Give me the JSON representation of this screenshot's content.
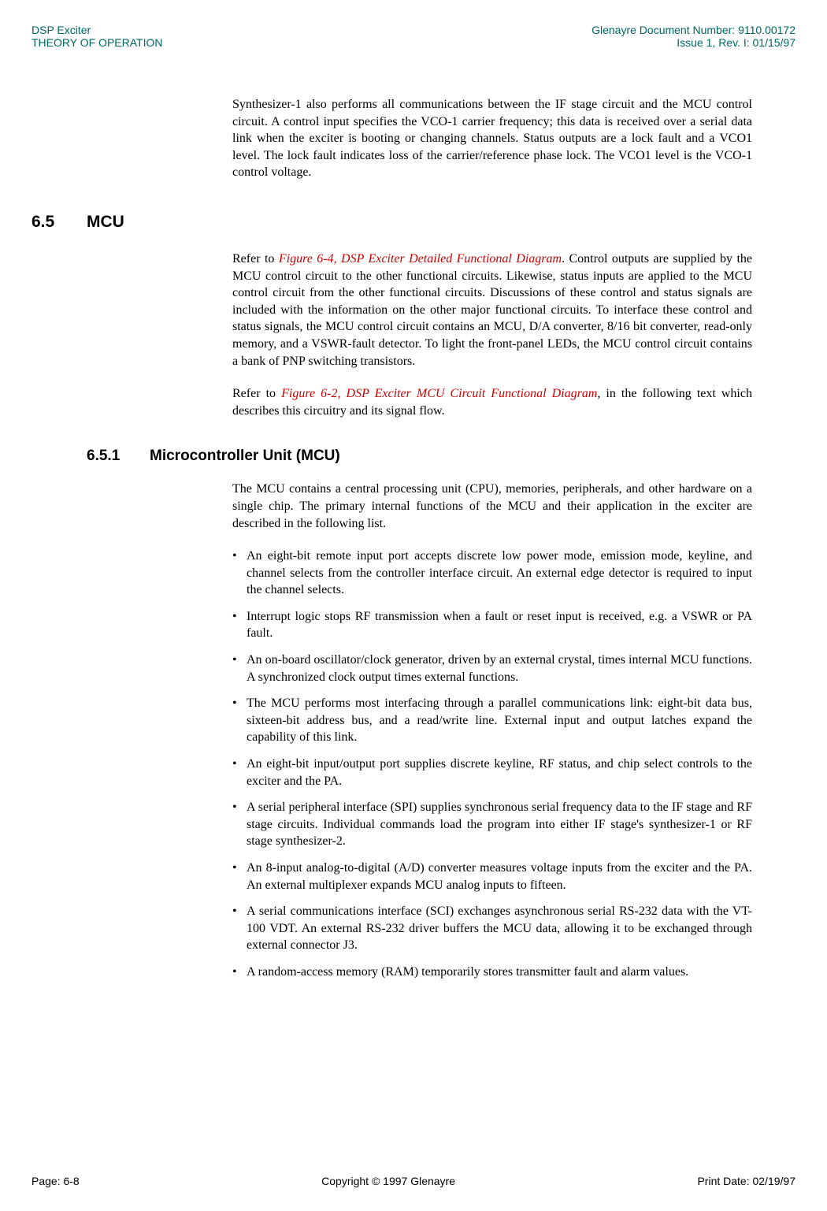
{
  "header": {
    "title_left_1": "DSP Exciter",
    "title_left_2": "THEORY OF OPERATION",
    "title_right_1": "Glenayre Document Number: 9110.00172",
    "title_right_2": "Issue 1, Rev. I: 01/15/97"
  },
  "colors": {
    "header_color": "#006666",
    "figure_ref_color": "#cc0000",
    "text_color": "#000000",
    "background": "#ffffff"
  },
  "para_intro": "Synthesizer-1 also performs all communications between the IF stage circuit and the MCU control circuit. A control input specifies the VCO-1 carrier frequency; this data is received over a serial data link when the exciter is booting or changing channels. Status outputs are a lock fault and a VCO1 level. The lock fault indicates loss of the carrier/reference phase lock. The VCO1 level is the VCO-1 control voltage.",
  "section_6_5": {
    "number": "6.5",
    "title": "MCU",
    "para1_prefix": "Refer to ",
    "para1_ref": "Figure 6-4, DSP Exciter Detailed Functional Diagram",
    "para1_suffix": ". Control outputs are supplied by the MCU control circuit to the other functional circuits. Likewise, status inputs are applied to the MCU control circuit from the other functional circuits. Discussions of these control and status signals are included with the information on the other major functional circuits. To interface these control and status signals, the MCU control circuit contains an MCU, D/A converter, 8/16 bit converter, read-only memory, and a VSWR-fault detector. To light the front-panel LEDs, the MCU control circuit contains a bank of PNP switching transistors.",
    "para2_prefix": "Refer to ",
    "para2_ref": "Figure 6-2, DSP Exciter MCU Circuit Functional Diagram",
    "para2_suffix": ", in the following text which describes this circuitry and its signal flow."
  },
  "section_6_5_1": {
    "number": "6.5.1",
    "title": "Microcontroller Unit (MCU)",
    "intro": "The MCU contains a central processing unit (CPU), memories, peripherals, and other hardware on a single chip. The primary internal functions of the MCU and their application in the exciter are described in the following list.",
    "bullets": [
      "An eight-bit remote input port accepts discrete low power mode, emission mode, keyline, and channel selects from the controller interface circuit. An external edge detector is required to input the channel selects.",
      "Interrupt logic stops RF transmission when a fault or reset input is received, e.g. a VSWR or PA fault.",
      "An on-board oscillator/clock generator, driven by an external crystal, times internal MCU functions. A synchronized clock output times external functions.",
      "The MCU performs most interfacing through a parallel communications link: eight-bit data bus, sixteen-bit address bus, and a read/write line. External input and output latches expand the capability of this link.",
      "An eight-bit input/output port supplies discrete keyline, RF status, and chip select controls to the exciter and the PA.",
      "A serial peripheral interface (SPI) supplies synchronous serial frequency data to the IF stage and RF stage circuits. Individual commands load the program into either IF stage's synthesizer-1 or RF stage synthesizer-2.",
      "An 8-input analog-to-digital (A/D) converter measures voltage inputs from the exciter and the PA. An external multiplexer expands MCU analog inputs to fifteen.",
      "A serial communications interface (SCI) exchanges asynchronous serial RS-232 data with the VT-100 VDT. An external RS-232 driver buffers the MCU data, allowing it to be exchanged through external connector J3.",
      "A random-access memory (RAM) temporarily stores transmitter fault and alarm values."
    ]
  },
  "footer": {
    "left": "Page: 6-8",
    "center": "Copyright © 1997 Glenayre",
    "right": "Print Date: 02/19/97"
  }
}
